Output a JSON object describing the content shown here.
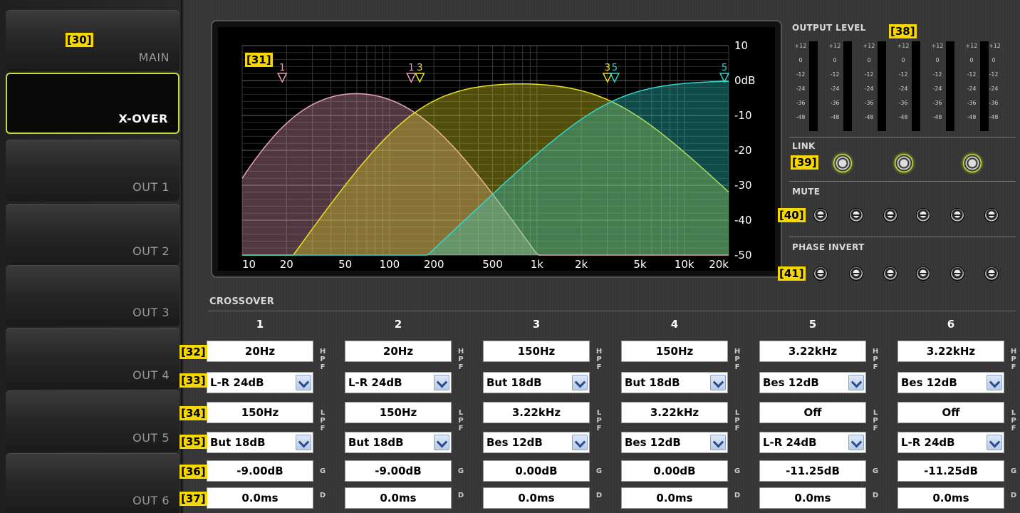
{
  "sidebar": {
    "items": [
      {
        "label": "MAIN",
        "active": false
      },
      {
        "label": "X-OVER",
        "active": true
      },
      {
        "label": "OUT 1",
        "active": false
      },
      {
        "label": "OUT 2",
        "active": false
      },
      {
        "label": "OUT 3",
        "active": false
      },
      {
        "label": "OUT 4",
        "active": false
      },
      {
        "label": "OUT 5",
        "active": false
      },
      {
        "label": "OUT 6",
        "active": false
      }
    ]
  },
  "badges": {
    "b30": "[30]",
    "b31": "[31]",
    "b32": "[32]",
    "b33": "[33]",
    "b34": "[34]",
    "b35": "[35]",
    "b36": "[36]",
    "b37": "[37]",
    "b38": "[38]",
    "b39": "[39]",
    "b40": "[40]",
    "b41": "[41]"
  },
  "graph": {
    "freq_ticks": [
      "10",
      "20",
      "50",
      "100",
      "200",
      "500",
      "1k",
      "2k",
      "5k",
      "10k",
      "20k"
    ],
    "db_ticks": [
      "10",
      "0dB",
      "-10",
      "-20",
      "-30",
      "-40",
      "-50"
    ],
    "markers": [
      "1",
      "1",
      "3",
      "3",
      "5",
      "5"
    ]
  },
  "colors": {
    "accent": "#c8dc3c",
    "band_pink": "#e8a0b8",
    "band_yellow": "#e8e020",
    "band_cyan": "#30d8d0"
  },
  "output_level": {
    "title": "OUTPUT LEVEL",
    "scale": [
      "+12",
      "0",
      "-12",
      "-24",
      "-36",
      "-48"
    ]
  },
  "link": {
    "title": "LINK"
  },
  "mute": {
    "title": "MUTE"
  },
  "phase": {
    "title": "PHASE INVERT"
  },
  "crossover": {
    "title": "CROSSOVER",
    "columns": [
      {
        "num": "1",
        "hpf_freq": "20Hz",
        "hpf_type": "L-R 24dB",
        "lpf_freq": "150Hz",
        "lpf_type": "But 18dB",
        "gain": "-9.00dB",
        "delay": "0.0ms"
      },
      {
        "num": "2",
        "hpf_freq": "20Hz",
        "hpf_type": "L-R 24dB",
        "lpf_freq": "150Hz",
        "lpf_type": "But 18dB",
        "gain": "-9.00dB",
        "delay": "0.0ms"
      },
      {
        "num": "3",
        "hpf_freq": "150Hz",
        "hpf_type": "But 18dB",
        "lpf_freq": "3.22kHz",
        "lpf_type": "Bes 12dB",
        "gain": "0.00dB",
        "delay": "0.0ms"
      },
      {
        "num": "4",
        "hpf_freq": "150Hz",
        "hpf_type": "But 18dB",
        "lpf_freq": "3.22kHz",
        "lpf_type": "Bes 12dB",
        "gain": "0.00dB",
        "delay": "0.0ms"
      },
      {
        "num": "5",
        "hpf_freq": "3.22kHz",
        "hpf_type": "Bes 12dB",
        "lpf_freq": "Off",
        "lpf_type": "L-R 24dB",
        "gain": "-11.25dB",
        "delay": "0.0ms"
      },
      {
        "num": "6",
        "hpf_freq": "3.22kHz",
        "hpf_type": "Bes 12dB",
        "lpf_freq": "Off",
        "lpf_type": "L-R 24dB",
        "gain": "-11.25dB",
        "delay": "0.0ms"
      }
    ],
    "tags": {
      "h": "H",
      "p": "P",
      "f": "F",
      "l": "L",
      "g": "G",
      "d": "D"
    }
  }
}
